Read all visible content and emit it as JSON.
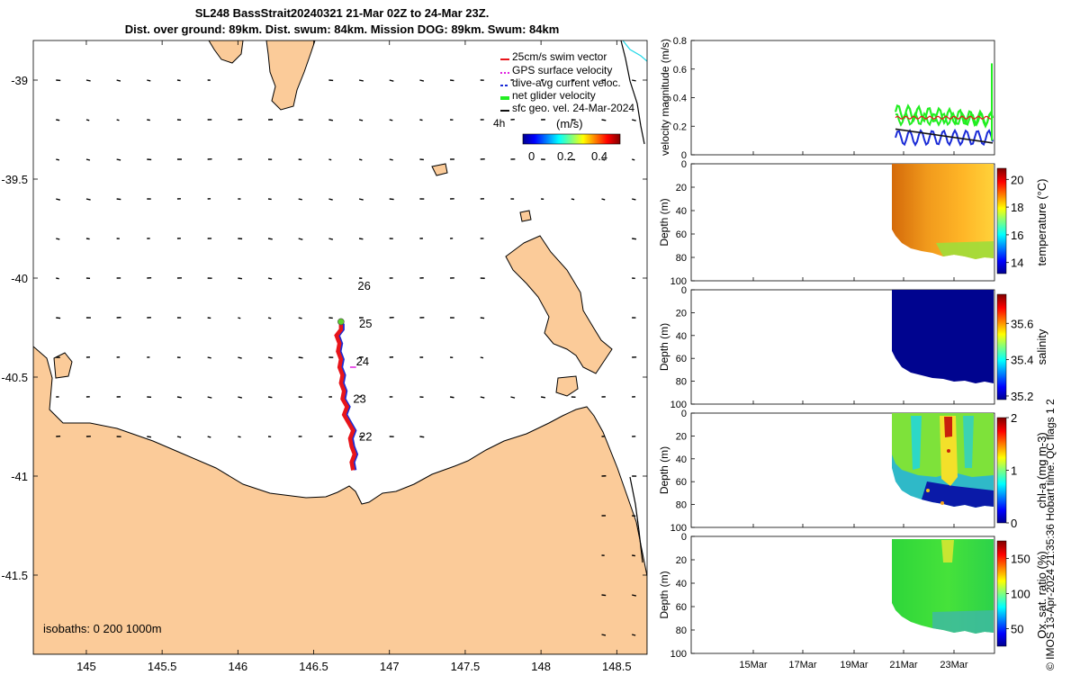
{
  "title_line1": "SL248 BassStrait20240321 21-Mar 02Z to 24-Mar 23Z.",
  "title_line2": "Dist. over ground: 89km. Dist. swum: 84km. Mission DOG: 89km. Swum: 84km",
  "footer": "© IMOS 13-Apr-2024 21:35:36 Hobart time. QC flags 1  2",
  "colors": {
    "land": "#fbcb99",
    "track_red": "#e8141a",
    "track_blue": "#1a2bd6",
    "net_green": "#22ee22",
    "sfc_black": "#111111",
    "gps_magenta": "#e020e0",
    "marker_green": "#5cd12c"
  },
  "chart_data": [
    {
      "type": "scatter",
      "name": "map",
      "xlim": [
        144.65,
        148.7
      ],
      "ylim": [
        -41.9,
        -38.8
      ],
      "xticks": [
        "145",
        "145.5",
        "146",
        "146.5",
        "147",
        "147.5",
        "148",
        "148.5"
      ],
      "yticks": [
        "-39",
        "-39.5",
        "-40",
        "-40.5",
        "-41",
        "-41.5"
      ],
      "day_labels": [
        {
          "text": "26",
          "lon": 146.79,
          "lat": -40.06
        },
        {
          "text": "25",
          "lon": 146.8,
          "lat": -40.25
        },
        {
          "text": "24",
          "lon": 146.78,
          "lat": -40.44
        },
        {
          "text": "23",
          "lon": 146.76,
          "lat": -40.63
        },
        {
          "text": "22",
          "lon": 146.8,
          "lat": -40.82
        }
      ],
      "isobath_label": "isobaths: 0   200  1000m",
      "legend": {
        "entries": [
          "25cm/s swim vector",
          "GPS surface velocity",
          "dive-avg current veloc.",
          "net glider velocity",
          "sfc geo. vel. 24-Mar-2024"
        ],
        "time_label": "4h",
        "colorbar_label": "(m/s)",
        "colorbar_ticks": [
          "0",
          "0.2",
          "0.4"
        ]
      }
    },
    {
      "type": "line",
      "name": "velocity",
      "ylabel": "velocity magnitude (m/s)",
      "ylim": [
        0,
        0.8
      ],
      "yticks": [
        "0",
        "0.2",
        "0.4",
        "0.6",
        "0.8"
      ],
      "series": [
        {
          "name": "net glider velocity",
          "color": "#22ee22"
        },
        {
          "name": "dive-avg current veloc.",
          "color": "#1a2bd6"
        },
        {
          "name": "sfc geo. vel. 24-Mar-2024",
          "color": "#111111"
        },
        {
          "name": "25cm/s swim vector",
          "color": "#e8141a"
        }
      ]
    },
    {
      "type": "heatmap",
      "name": "temperature",
      "ylabel": "Depth (m)",
      "cbar_label": "temperature (°C)",
      "cbar_ticks": [
        "14",
        "16",
        "18",
        "20"
      ],
      "cbar_range": [
        13.2,
        20.8
      ],
      "depth_ticks": [
        "0",
        "20",
        "40",
        "60",
        "80",
        "100"
      ]
    },
    {
      "type": "heatmap",
      "name": "salinity",
      "ylabel": "Depth (m)",
      "cbar_label": "salinity",
      "cbar_ticks": [
        "35.2",
        "35.4",
        "35.6"
      ],
      "cbar_range": [
        35.18,
        35.76
      ],
      "depth_ticks": [
        "0",
        "20",
        "40",
        "60",
        "80",
        "100"
      ]
    },
    {
      "type": "heatmap",
      "name": "chla",
      "ylabel": "Depth (m)",
      "cbar_label": "chl-a (mg m-3)",
      "cbar_ticks": [
        "0",
        "1",
        "2"
      ],
      "cbar_range": [
        0,
        2
      ],
      "depth_ticks": [
        "0",
        "20",
        "40",
        "60",
        "80",
        "100"
      ]
    },
    {
      "type": "heatmap",
      "name": "oxygen",
      "ylabel": "Depth (m)",
      "cbar_label": "Ox. sat. ratio (%)",
      "cbar_ticks": [
        "50",
        "100",
        "150"
      ],
      "cbar_range": [
        25,
        175
      ],
      "depth_ticks": [
        "0",
        "20",
        "40",
        "60",
        "80",
        "100"
      ],
      "xticks": [
        "15Mar",
        "17Mar",
        "19Mar",
        "21Mar",
        "23Mar"
      ]
    }
  ]
}
